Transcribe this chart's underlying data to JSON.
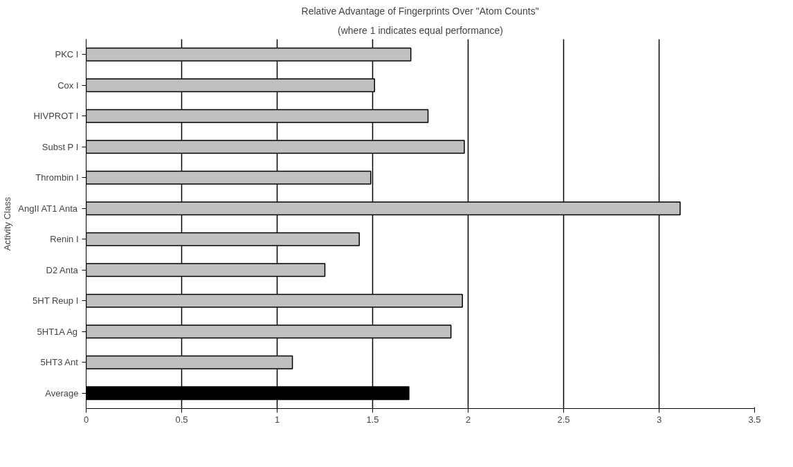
{
  "chart_data": {
    "type": "bar",
    "orientation": "horizontal",
    "title": "Relative Advantage of Fingerprints Over \"Atom Counts\"",
    "subtitle": "(where 1 indicates equal performance)",
    "ylabel": "Activity Class",
    "categories": [
      "PKC I",
      "Cox I",
      "HIVPROT I",
      "Subst P I",
      "Thrombin I",
      "AngII AT1 Anta",
      "Renin I",
      "D2 Anta",
      "5HT Reup I",
      "5HT1A Ag",
      "5HT3 Ant",
      "Average"
    ],
    "values": [
      1.7,
      1.51,
      1.79,
      1.98,
      1.49,
      3.11,
      1.43,
      1.25,
      1.97,
      1.91,
      1.08,
      1.69
    ],
    "colors": [
      "#c0c0c0",
      "#c0c0c0",
      "#c0c0c0",
      "#c0c0c0",
      "#c0c0c0",
      "#c0c0c0",
      "#c0c0c0",
      "#c0c0c0",
      "#c0c0c0",
      "#c0c0c0",
      "#c0c0c0",
      "#000000"
    ],
    "xlim": [
      0,
      3.5
    ],
    "xticks": [
      0,
      0.5,
      1,
      1.5,
      2,
      2.5,
      3,
      3.5
    ],
    "grid": "x"
  }
}
